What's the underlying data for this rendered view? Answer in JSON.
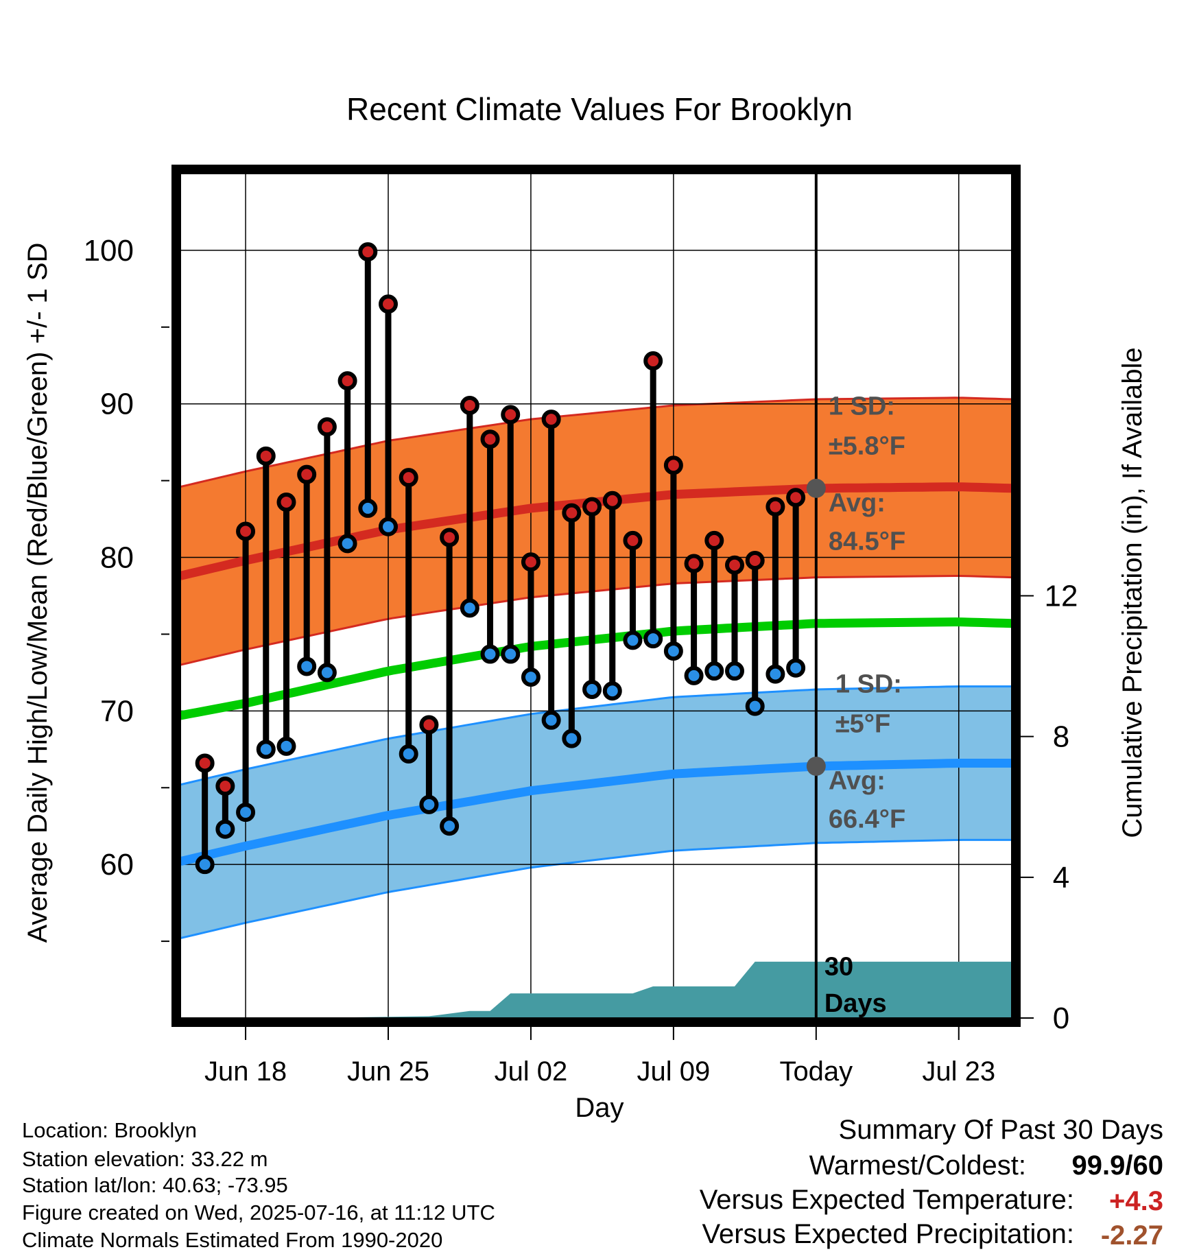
{
  "chart_data": {
    "type": "line",
    "title": "Recent Climate Values For Brooklyn",
    "xlabel": "Day",
    "ylabel": "Average Daily High/Low/Mean (Red/Blue/Green) +/- 1 SD",
    "y2label": "Cumulative Precipitation (in), If Available",
    "ylim": [
      50,
      105
    ],
    "y_ticks": [
      60,
      70,
      80,
      90,
      100
    ],
    "y2lim": [
      0,
      24
    ],
    "y2_ticks": [
      0,
      4,
      8,
      12
    ],
    "x_tick_labels": [
      "Jun 18",
      "Jun 25",
      "Jul 02",
      "Jul 09",
      "Today",
      "Jul 23"
    ],
    "x_tick_days": [
      18,
      25,
      32,
      39,
      46,
      53
    ],
    "xlim": [
      14.8,
      55.6
    ],
    "today_day": 46,
    "grid": true,
    "today_label": "30\nDays",
    "days": [
      16,
      17,
      18,
      19,
      20,
      21,
      22,
      23,
      24,
      25,
      26,
      27,
      28,
      29,
      30,
      31,
      32,
      33,
      34,
      35,
      36,
      37,
      38,
      39,
      40,
      41,
      42,
      43,
      44,
      45
    ],
    "observed_high": [
      66.6,
      65.1,
      81.7,
      86.6,
      83.6,
      85.4,
      88.5,
      91.5,
      99.9,
      96.5,
      85.2,
      69.1,
      81.3,
      89.9,
      87.7,
      89.3,
      79.7,
      89.0,
      82.9,
      83.3,
      83.7,
      81.1,
      92.8,
      86.0,
      79.6,
      81.1,
      79.5,
      79.8,
      83.3,
      83.9
    ],
    "observed_low": [
      60.0,
      62.3,
      63.4,
      67.5,
      67.7,
      72.9,
      72.5,
      80.9,
      83.2,
      82.0,
      67.2,
      63.9,
      62.5,
      76.7,
      73.7,
      73.7,
      72.2,
      69.4,
      68.2,
      71.4,
      71.3,
      74.6,
      74.7,
      73.9,
      72.3,
      72.6,
      72.6,
      70.3,
      72.4,
      72.8
    ],
    "series": [
      {
        "name": "Avg",
        "band": "high",
        "days": [
          14.8,
          18,
          25,
          32,
          39,
          46,
          53,
          55.6
        ],
        "mean": [
          78.8,
          79.8,
          81.8,
          83.2,
          84.1,
          84.5,
          84.6,
          84.5
        ],
        "sd": 5.8
      },
      {
        "name": "Mean",
        "band": "mean",
        "days": [
          14.8,
          18,
          25,
          32,
          39,
          46,
          53,
          55.6
        ],
        "mean": [
          69.7,
          70.5,
          72.6,
          74.2,
          75.2,
          75.7,
          75.8,
          75.7
        ]
      },
      {
        "name": "Avg",
        "band": "low",
        "days": [
          14.8,
          18,
          25,
          32,
          39,
          46,
          53,
          55.6
        ],
        "mean": [
          60.2,
          61.2,
          63.2,
          64.8,
          65.9,
          66.4,
          66.6,
          66.6
        ],
        "sd": 5.0
      }
    ],
    "precip_cumulative": {
      "days": [
        14.8,
        21,
        27,
        29,
        30,
        31,
        36,
        37,
        38,
        40,
        42,
        43,
        55.6
      ],
      "values": [
        0,
        0,
        0.05,
        0.2,
        0.2,
        0.7,
        0.7,
        0.7,
        0.9,
        0.9,
        0.9,
        1.6,
        1.6
      ]
    },
    "annotations": {
      "high_sd": {
        "line1": "1 SD:",
        "line2": "±5.8°F"
      },
      "high_avg": {
        "line1": "Avg:",
        "line2": "84.5°F"
      },
      "low_sd": {
        "line1": "1 SD:",
        "line2": "±5°F"
      },
      "low_avg": {
        "line1": "Avg:",
        "line2": "66.4°F"
      }
    },
    "colors": {
      "high_band": "#f47a30",
      "high_line": "#d42a20",
      "mean_line": "#00cc00",
      "low_band": "#80c0e6",
      "low_line": "#1e90ff",
      "precip": "#459ba2",
      "high_dot": "#cc2222",
      "low_dot": "#2a8fe6",
      "annotation": "#505050"
    }
  },
  "footer": {
    "location": "Location: Brooklyn",
    "elevation": "Station elevation: 33.22 m",
    "latlon": "Station lat/lon: 40.63; -73.95",
    "created": "Figure created on Wed, 2025-07-16, at 11:12 UTC",
    "normals": "Climate Normals Estimated From 1990-2020"
  },
  "summary": {
    "title": "Summary Of Past 30 Days",
    "warm_cold_label": "Warmest/Coldest:",
    "warm_cold_value": "99.9/60",
    "temp_label": "Versus Expected Temperature:",
    "temp_value": "+4.3",
    "temp_color": "#cc2222",
    "precip_label": "Versus Expected Precipitation:",
    "precip_value": "-2.27",
    "precip_color": "#a0522d"
  }
}
